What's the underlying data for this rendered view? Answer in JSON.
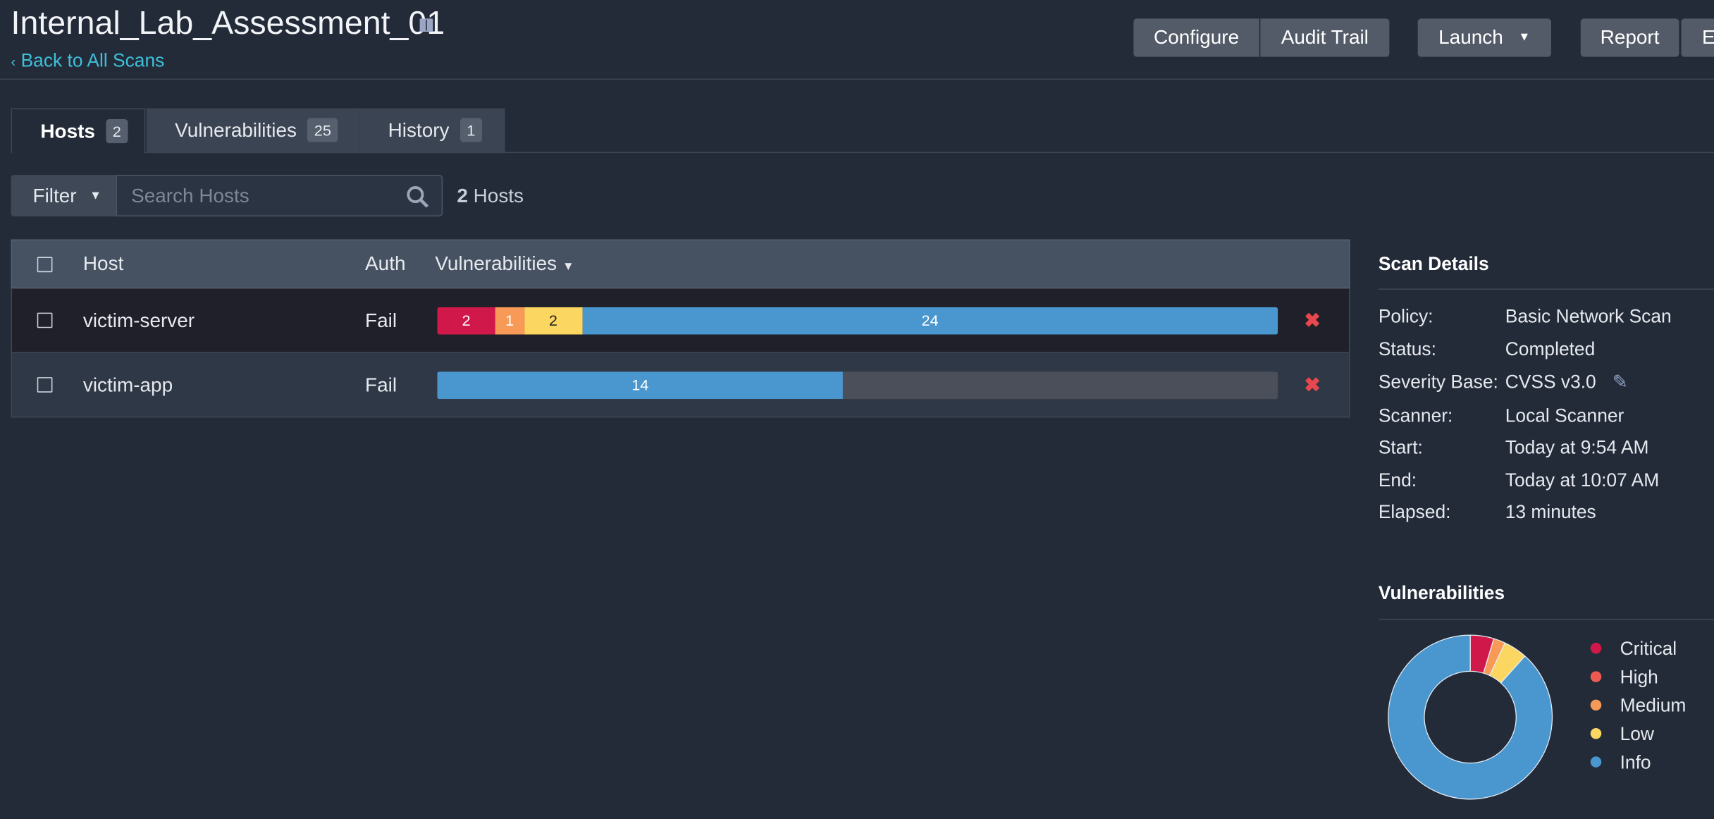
{
  "header": {
    "title": "Internal_Lab_Assessment_01",
    "back_link": "Back to All Scans",
    "buttons": [
      "Configure",
      "Audit Trail",
      "Launch",
      "Report",
      "E"
    ]
  },
  "tabs": [
    {
      "label": "Hosts",
      "count": 2
    },
    {
      "label": "Vulnerabilities",
      "count": 25
    },
    {
      "label": "History",
      "count": 1
    }
  ],
  "filter": {
    "button": "Filter",
    "search_placeholder": "Search Hosts",
    "host_count": 2,
    "host_count_label": "Hosts"
  },
  "table": {
    "columns": [
      "Host",
      "Auth",
      "Vulnerabilities"
    ],
    "rows": [
      {
        "host": "victim-server",
        "auth": "Fail",
        "segments": [
          {
            "color": "#d0184a",
            "value": 2
          },
          {
            "color": "#f79a58",
            "value": 1
          },
          {
            "color": "#fbd661",
            "value": 2
          },
          {
            "color": "#4a97cf",
            "value": 24
          }
        ]
      },
      {
        "host": "victim-app",
        "auth": "Fail",
        "segments": [
          {
            "color": "#4a97cf",
            "value": 14
          }
        ]
      }
    ]
  },
  "scan_details": {
    "title": "Scan Details",
    "items": [
      [
        "Policy:",
        "Basic Network Scan"
      ],
      [
        "Status:",
        "Completed"
      ],
      [
        "Severity Base:",
        "CVSS v3.0"
      ],
      [
        "Scanner:",
        "Local Scanner"
      ],
      [
        "Start:",
        "Today at 9:54 AM"
      ],
      [
        "End:",
        "Today at 10:07 AM"
      ],
      [
        "Elapsed:",
        "13 minutes"
      ]
    ]
  },
  "vulnerability_chart": {
    "type": "donut",
    "title": "Vulnerabilities",
    "series": [
      {
        "name": "Critical",
        "color": "#d0184a",
        "value": 2
      },
      {
        "name": "High",
        "color": "#ee5a52",
        "value": 0
      },
      {
        "name": "Medium",
        "color": "#f79a58",
        "value": 1
      },
      {
        "name": "Low",
        "color": "#fbd661",
        "value": 2
      },
      {
        "name": "Info",
        "color": "#4a97cf",
        "value": 38
      }
    ]
  }
}
